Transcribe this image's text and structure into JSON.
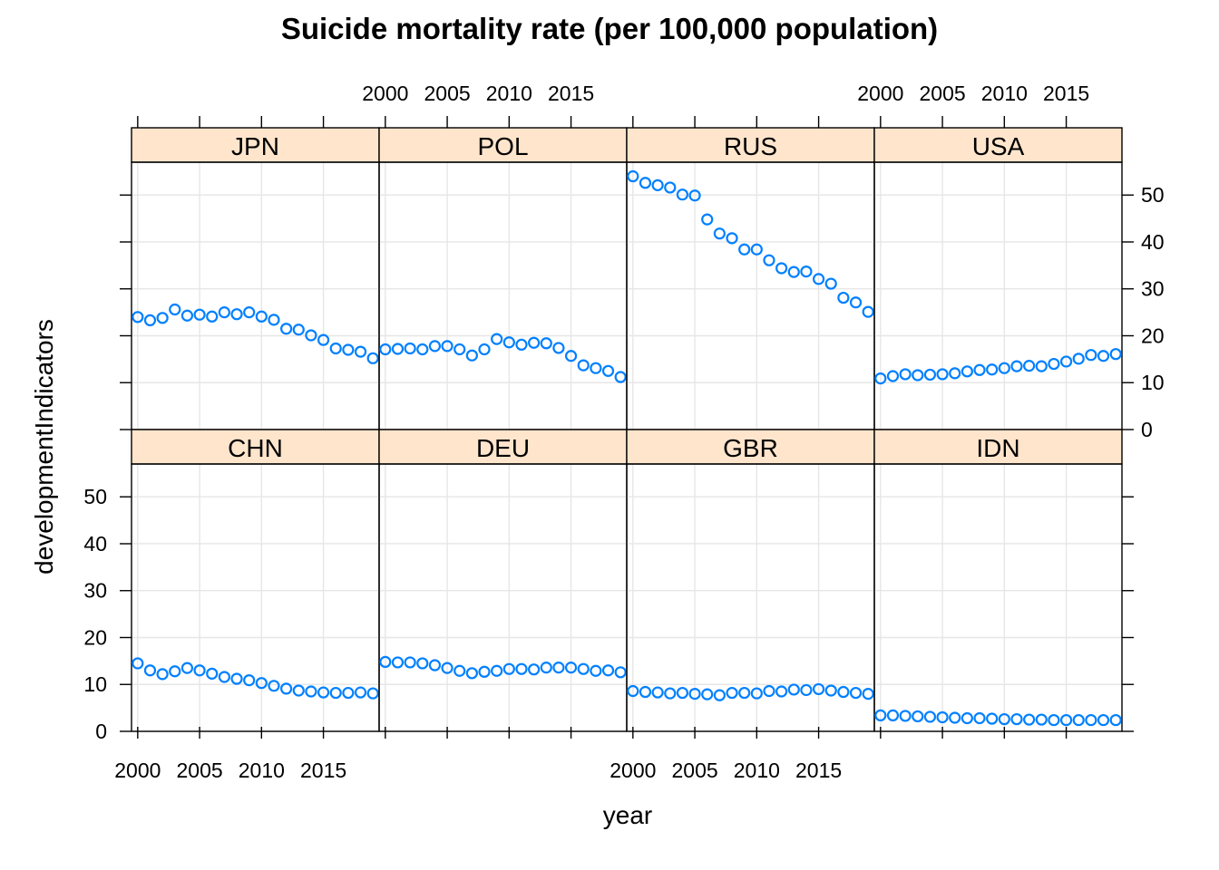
{
  "chart_data": {
    "type": "scatter",
    "title": "Suicide mortality rate (per 100,000 population)",
    "xlabel": "year",
    "ylabel": "developmentIndicators",
    "xlim": [
      1999.5,
      2019.5
    ],
    "ylim": [
      0,
      57
    ],
    "x_ticks": [
      2000,
      2005,
      2010,
      2015
    ],
    "y_ticks": [
      0,
      10,
      20,
      30,
      40,
      50
    ],
    "grid": true,
    "layout": "4 columns x 2 rows",
    "colors": {
      "point": "#0080ff",
      "strip_bg": "#ffe5cc",
      "grid": "#e6e6e6",
      "frame": "#000000"
    },
    "x": [
      2000,
      2001,
      2002,
      2003,
      2004,
      2005,
      2006,
      2007,
      2008,
      2009,
      2010,
      2011,
      2012,
      2013,
      2014,
      2015,
      2016,
      2017,
      2018,
      2019
    ],
    "series": [
      {
        "name": "JPN",
        "values": [
          24.0,
          23.3,
          23.8,
          25.6,
          24.3,
          24.5,
          24.1,
          25.0,
          24.6,
          25.0,
          24.1,
          23.4,
          21.5,
          21.3,
          20.1,
          19.1,
          17.3,
          17.0,
          16.6,
          15.2
        ]
      },
      {
        "name": "POL",
        "values": [
          17.1,
          17.2,
          17.3,
          17.1,
          17.8,
          17.8,
          17.1,
          15.8,
          17.1,
          19.3,
          18.6,
          18.1,
          18.5,
          18.4,
          17.4,
          15.7,
          13.7,
          13.1,
          12.5,
          11.2
        ]
      },
      {
        "name": "RUS",
        "values": [
          54.0,
          52.6,
          52.1,
          51.6,
          50.1,
          49.9,
          44.8,
          41.8,
          40.8,
          38.4,
          38.4,
          36.1,
          34.4,
          33.6,
          33.7,
          32.1,
          31.1,
          28.1,
          27.1,
          25.1
        ]
      },
      {
        "name": "USA",
        "values": [
          10.9,
          11.4,
          11.8,
          11.6,
          11.7,
          11.8,
          12.0,
          12.4,
          12.7,
          12.8,
          13.1,
          13.5,
          13.6,
          13.5,
          14.0,
          14.5,
          15.1,
          15.9,
          15.7,
          16.1
        ]
      },
      {
        "name": "CHN",
        "values": [
          14.5,
          13.0,
          12.2,
          12.8,
          13.5,
          13.0,
          12.3,
          11.6,
          11.2,
          10.9,
          10.3,
          9.7,
          9.1,
          8.7,
          8.5,
          8.3,
          8.2,
          8.2,
          8.3,
          8.1
        ]
      },
      {
        "name": "DEU",
        "values": [
          14.8,
          14.7,
          14.7,
          14.5,
          14.1,
          13.5,
          12.9,
          12.4,
          12.7,
          12.9,
          13.3,
          13.3,
          13.2,
          13.6,
          13.6,
          13.6,
          13.3,
          12.9,
          13.0,
          12.6
        ]
      },
      {
        "name": "GBR",
        "values": [
          8.6,
          8.4,
          8.3,
          8.1,
          8.2,
          8.0,
          7.9,
          7.7,
          8.2,
          8.2,
          8.1,
          8.6,
          8.5,
          8.9,
          8.8,
          9.0,
          8.7,
          8.4,
          8.2,
          8.0
        ]
      },
      {
        "name": "IDN",
        "values": [
          3.4,
          3.4,
          3.3,
          3.2,
          3.1,
          3.0,
          2.9,
          2.8,
          2.8,
          2.7,
          2.6,
          2.6,
          2.5,
          2.5,
          2.4,
          2.4,
          2.4,
          2.4,
          2.4,
          2.4
        ]
      }
    ]
  }
}
